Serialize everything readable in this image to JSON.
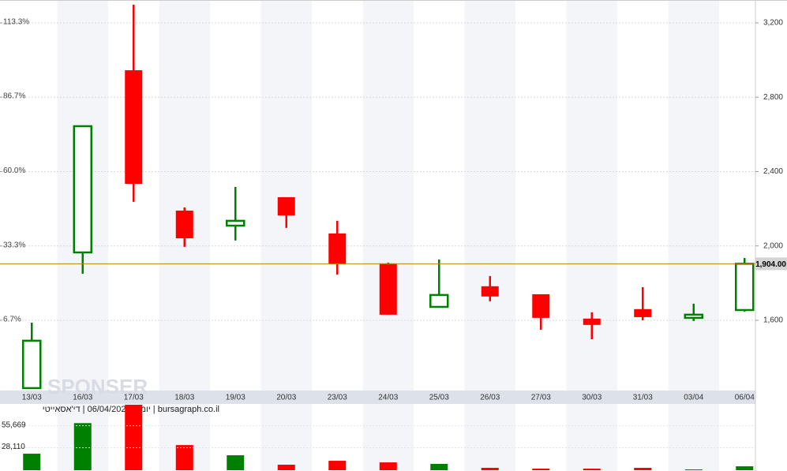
{
  "chart_data": {
    "type": "candlestick",
    "caption": "יומי | 06/04/2026 | די'אסאייטי | bursagraph.co.il",
    "watermark": "SPONSER",
    "categories": [
      "13/03",
      "16/03",
      "17/03",
      "18/03",
      "19/03",
      "20/03",
      "23/03",
      "24/03",
      "25/03",
      "26/03",
      "27/03",
      "30/03",
      "31/03",
      "03/04",
      "06/04"
    ],
    "open": [
      1235,
      1965,
      2945,
      2190,
      2109,
      2262,
      2067,
      1906,
      1672,
      1783,
      1740,
      1609,
      1660,
      1613,
      1655
    ],
    "high": [
      1587,
      2644,
      3298,
      2207,
      2317,
      2262,
      2135,
      1910,
      1927,
      1838,
      1740,
      1643,
      1778,
      1689,
      1935
    ],
    "low": [
      1235,
      1850,
      2237,
      1995,
      2029,
      2097,
      1846,
      1630,
      1672,
      1702,
      1549,
      1498,
      1600,
      1596,
      1647
    ],
    "close": [
      1490,
      2644,
      2334,
      2041,
      2135,
      2164,
      1901,
      1630,
      1736,
      1728,
      1613,
      1575,
      1617,
      1630,
      1904
    ],
    "up_color": "#008000",
    "down_color": "#ff0000",
    "ylim": [
      1222,
      3323
    ],
    "yticks": [
      {
        "value": 1600,
        "label": "1,600"
      },
      {
        "value": 2000,
        "label": "2,000"
      },
      {
        "value": 2400,
        "label": "2,400"
      },
      {
        "value": 2800,
        "label": "2,800"
      },
      {
        "value": 3200,
        "label": "3,200"
      }
    ],
    "y2lim": [
      -18.53,
      121.53
    ],
    "y2ticks": [
      {
        "value": 6.7,
        "label": "6.7%"
      },
      {
        "value": 33.3,
        "label": "33.3%"
      },
      {
        "value": 60.0,
        "label": "60.0%"
      },
      {
        "value": 86.7,
        "label": "86.7%"
      },
      {
        "value": 113.3,
        "label": "113.3%"
      }
    ],
    "last_price": {
      "value": 1904,
      "label": "1,904.00",
      "color": "#b8860b"
    },
    "grid": true,
    "volume": {
      "values": [
        20700,
        59000,
        82000,
        31500,
        18700,
        6900,
        11800,
        9800,
        7900,
        3000,
        2000,
        2000,
        3000,
        1000,
        4900
      ],
      "ylim": [
        0,
        82000
      ],
      "yticks": [
        {
          "value": 28110,
          "label": "28,110"
        },
        {
          "value": 55669,
          "label": "55,669"
        }
      ]
    }
  }
}
